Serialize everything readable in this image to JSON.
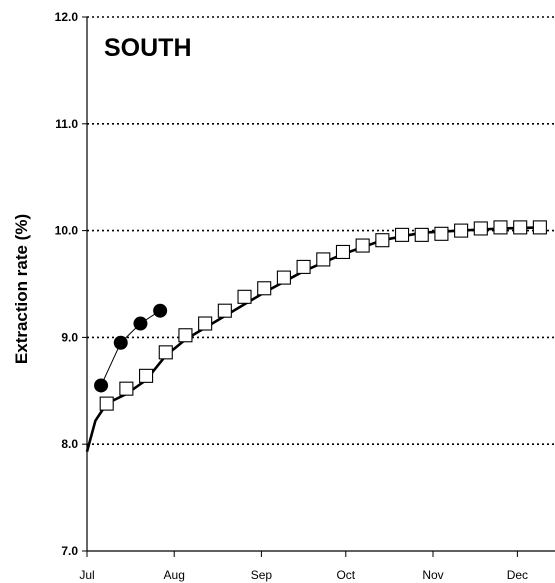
{
  "chart_data": {
    "type": "line",
    "title": "",
    "region_label": "SOUTH",
    "xlabel": "",
    "ylabel": "Extraction rate (%)",
    "ylim": [
      7.0,
      12.0
    ],
    "yticks": [
      7.0,
      8.0,
      9.0,
      10.0,
      11.0,
      12.0
    ],
    "ytick_labels": [
      "7.0",
      "8.0",
      "9.0",
      "10.0",
      "11.0",
      "12.0"
    ],
    "xlim": [
      "Jul",
      "Dec"
    ],
    "xtick_labels": [
      "Jul",
      "Aug",
      "Sep",
      "Oct",
      "Nov",
      "Dec"
    ],
    "grid": "horizontal dotted",
    "legend": "none",
    "series": [
      {
        "marker": "open-square",
        "points": [
          {
            "x": "Jul 8",
            "y": 8.38
          },
          {
            "x": "Jul 15",
            "y": 8.52
          },
          {
            "x": "Jul 22",
            "y": 8.64
          },
          {
            "x": "Jul 29",
            "y": 8.86
          },
          {
            "x": "Aug 5",
            "y": 9.02
          },
          {
            "x": "Aug 12",
            "y": 9.13
          },
          {
            "x": "Aug 19",
            "y": 9.25
          },
          {
            "x": "Aug 26",
            "y": 9.38
          },
          {
            "x": "Sep 2",
            "y": 9.46
          },
          {
            "x": "Sep 9",
            "y": 9.56
          },
          {
            "x": "Sep 16",
            "y": 9.66
          },
          {
            "x": "Sep 23",
            "y": 9.73
          },
          {
            "x": "Sep 30",
            "y": 9.8
          },
          {
            "x": "Oct 7",
            "y": 9.86
          },
          {
            "x": "Oct 14",
            "y": 9.91
          },
          {
            "x": "Oct 21",
            "y": 9.96
          },
          {
            "x": "Oct 28",
            "y": 9.96
          },
          {
            "x": "Nov 4",
            "y": 9.97
          },
          {
            "x": "Nov 11",
            "y": 10.0
          },
          {
            "x": "Nov 18",
            "y": 10.02
          },
          {
            "x": "Nov 25",
            "y": 10.03
          },
          {
            "x": "Dec 2",
            "y": 10.03
          },
          {
            "x": "Dec 9",
            "y": 10.03
          }
        ]
      },
      {
        "marker": "filled-circle",
        "points": [
          {
            "x": "Jul 6",
            "y": 8.55
          },
          {
            "x": "Jul 13",
            "y": 8.95
          },
          {
            "x": "Jul 20",
            "y": 9.13
          },
          {
            "x": "Jul 27",
            "y": 9.25
          }
        ]
      }
    ],
    "fitted_curve": {
      "style": "thick-solid",
      "points": [
        {
          "x": "Jul 1",
          "y": 7.93
        },
        {
          "x": "Jul 4",
          "y": 8.22
        },
        {
          "x": "Jul 8",
          "y": 8.38
        },
        {
          "x": "Jul 15",
          "y": 8.47
        },
        {
          "x": "Jul 22",
          "y": 8.6
        },
        {
          "x": "Jul 29",
          "y": 8.83
        },
        {
          "x": "Aug 5",
          "y": 8.98
        },
        {
          "x": "Aug 19",
          "y": 9.2
        },
        {
          "x": "Sep 2",
          "y": 9.42
        },
        {
          "x": "Sep 16",
          "y": 9.62
        },
        {
          "x": "Sep 30",
          "y": 9.78
        },
        {
          "x": "Oct 14",
          "y": 9.91
        },
        {
          "x": "Oct 28",
          "y": 9.98
        },
        {
          "x": "Nov 11",
          "y": 10.0
        },
        {
          "x": "Nov 25",
          "y": 10.02
        },
        {
          "x": "Dec 9",
          "y": 10.03
        }
      ]
    }
  }
}
